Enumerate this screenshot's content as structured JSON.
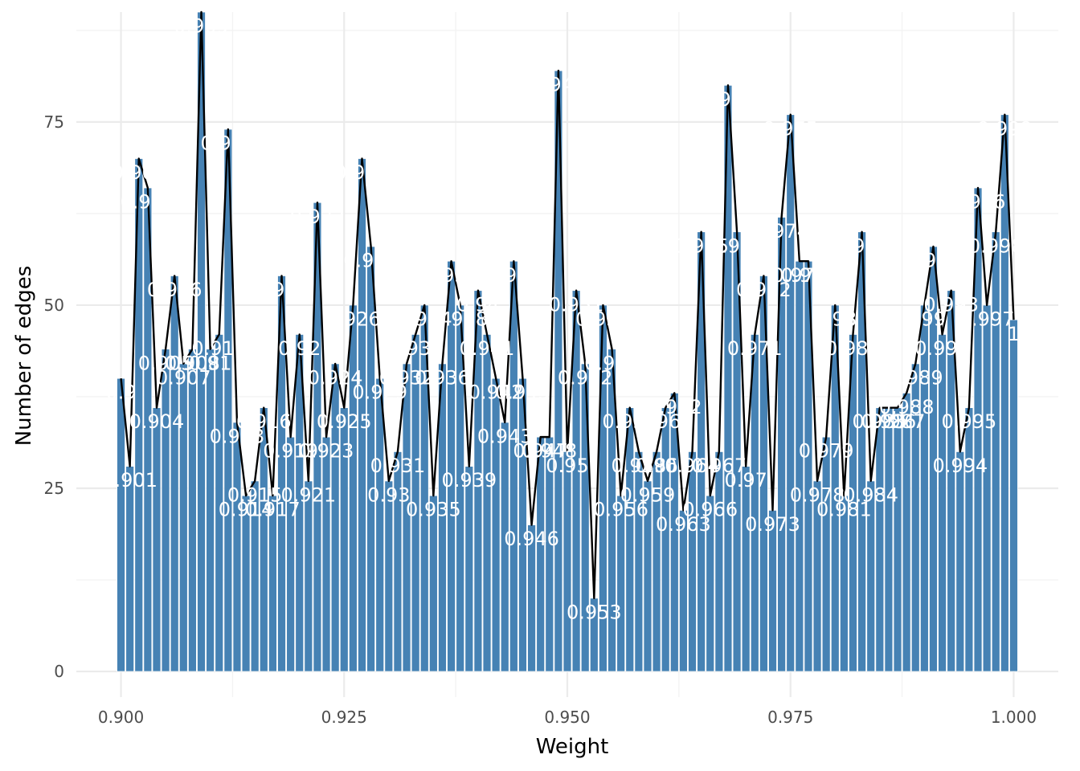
{
  "chart_data": {
    "type": "bar",
    "xlabel": "Weight",
    "ylabel": "Number of edges",
    "xlim": [
      0.895,
      1.005
    ],
    "ylim": [
      -3.5,
      90
    ],
    "x_ticks": [
      "0.900",
      "0.925",
      "0.950",
      "0.975",
      "1.000"
    ],
    "x_tick_values": [
      0.9,
      0.925,
      0.95,
      0.975,
      1.0
    ],
    "y_ticks": [
      "0",
      "25",
      "50",
      "75"
    ],
    "y_tick_values": [
      0,
      25,
      50,
      75
    ],
    "grid": true,
    "bar_color": "#4682b4",
    "line_color": "#000000",
    "overlay": "line through bar tops",
    "x": [
      0.9,
      0.901,
      0.902,
      0.903,
      0.904,
      0.905,
      0.906,
      0.907,
      0.908,
      0.909,
      0.91,
      0.911,
      0.912,
      0.913,
      0.914,
      0.915,
      0.916,
      0.917,
      0.918,
      0.919,
      0.92,
      0.921,
      0.922,
      0.923,
      0.924,
      0.925,
      0.926,
      0.927,
      0.928,
      0.929,
      0.93,
      0.931,
      0.932,
      0.933,
      0.934,
      0.935,
      0.936,
      0.937,
      0.938,
      0.939,
      0.94,
      0.941,
      0.942,
      0.943,
      0.944,
      0.945,
      0.946,
      0.947,
      0.948,
      0.949,
      0.95,
      0.951,
      0.952,
      0.953,
      0.954,
      0.955,
      0.956,
      0.957,
      0.958,
      0.959,
      0.96,
      0.961,
      0.962,
      0.963,
      0.964,
      0.965,
      0.966,
      0.967,
      0.968,
      0.969,
      0.97,
      0.971,
      0.972,
      0.973,
      0.974,
      0.975,
      0.976,
      0.977,
      0.978,
      0.979,
      0.98,
      0.981,
      0.982,
      0.983,
      0.984,
      0.985,
      0.986,
      0.987,
      0.988,
      0.989,
      0.99,
      0.991,
      0.992,
      0.993,
      0.994,
      0.995,
      0.996,
      0.997,
      0.998,
      0.999,
      1.0
    ],
    "values": [
      40,
      28,
      70,
      66,
      36,
      44,
      54,
      42,
      44,
      90,
      44,
      46,
      74,
      34,
      24,
      26,
      36,
      24,
      54,
      32,
      46,
      26,
      64,
      32,
      42,
      36,
      50,
      70,
      58,
      40,
      26,
      30,
      42,
      46,
      50,
      24,
      42,
      56,
      50,
      28,
      52,
      46,
      40,
      34,
      56,
      40,
      20,
      32,
      32,
      82,
      30,
      52,
      42,
      10,
      50,
      44,
      24,
      36,
      30,
      26,
      30,
      36,
      38,
      22,
      30,
      60,
      24,
      30,
      80,
      60,
      28,
      46,
      54,
      22,
      62,
      76,
      56,
      56,
      26,
      32,
      50,
      24,
      46,
      60,
      26,
      36,
      36,
      36,
      38,
      42,
      50,
      58,
      46,
      52,
      30,
      36,
      66,
      50,
      60,
      76,
      48
    ],
    "labels": [
      "0.9",
      "0.901",
      "0.902",
      "0.903",
      "0.904",
      "0.905",
      "0.906",
      "0.907",
      "0.908",
      "0.909",
      "0.91",
      "0.911",
      "0.912",
      "0.913",
      "0.914",
      "0.915",
      "0.916",
      "0.917",
      "0.918",
      "0.919",
      "0.92",
      "0.921",
      "0.922",
      "0.923",
      "0.924",
      "0.925",
      "0.926",
      "0.927",
      "0.928",
      "0.929",
      "0.93",
      "0.931",
      "0.932",
      "0.933",
      "0.934",
      "0.935",
      "0.936",
      "0.937",
      "0.938",
      "0.939",
      "0.94",
      "0.941",
      "0.942",
      "0.943",
      "0.944",
      "0.945",
      "0.946",
      "0.947",
      "0.948",
      "0.949",
      "0.95",
      "0.951",
      "0.952",
      "0.953",
      "0.954",
      "0.955",
      "0.956",
      "0.957",
      "0.958",
      "0.959",
      "0.96",
      "0.961",
      "0.962",
      "0.963",
      "0.964",
      "0.965",
      "0.966",
      "0.967",
      "0.968",
      "0.969",
      "0.97",
      "0.971",
      "0.972",
      "0.973",
      "0.974",
      "0.975",
      "0.976",
      "0.977",
      "0.978",
      "0.979",
      "0.98",
      "0.981",
      "0.982",
      "0.983",
      "0.984",
      "0.985",
      "0.986",
      "0.987",
      "0.988",
      "0.989",
      "0.99",
      "0.991",
      "0.992",
      "0.993",
      "0.994",
      "0.995",
      "0.996",
      "0.997",
      "0.998",
      "0.999",
      "1"
    ]
  }
}
